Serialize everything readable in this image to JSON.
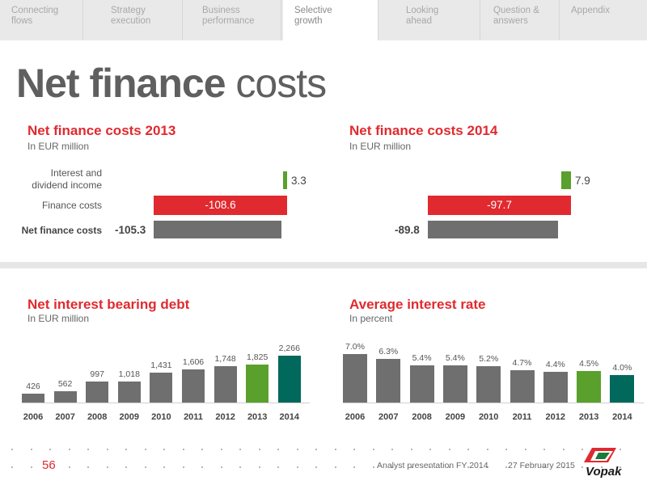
{
  "nav": {
    "tabs": [
      {
        "line1": "Connecting",
        "line2": "flows"
      },
      {
        "line1": "Strategy",
        "line2": "execution"
      },
      {
        "line1": "Business",
        "line2": "performance"
      },
      {
        "line1": "Selective",
        "line2": "growth"
      },
      {
        "line1": "Looking",
        "line2": "ahead"
      },
      {
        "line1": "Question &",
        "line2": "answers"
      },
      {
        "line1": "Appendix",
        "line2": ""
      }
    ],
    "active_index": 3
  },
  "page_title": {
    "bold": "Net finance",
    "regular": " costs"
  },
  "colors": {
    "red": "#e02a2f",
    "grey": "#6f6f6f",
    "green": "#5aa02c",
    "dark_green": "#00695c"
  },
  "finance_2013": {
    "title": "Net finance costs 2013",
    "subtitle": "In EUR million",
    "rows": [
      {
        "label_line1": "Interest and",
        "label_line2": "dividend income",
        "value": 3.3,
        "display": "3.3"
      },
      {
        "label_line1": "Finance costs",
        "label_line2": "",
        "value": -108.6,
        "display": "-108.6"
      },
      {
        "label_line1": "Net finance costs",
        "label_line2": "",
        "value": -105.3,
        "display": "-105.3"
      }
    ]
  },
  "finance_2014": {
    "title": "Net finance costs 2014",
    "subtitle": "In EUR million",
    "rows": [
      {
        "value": 7.9,
        "display": "7.9"
      },
      {
        "value": -97.7,
        "display": "-97.7"
      },
      {
        "value": -89.8,
        "display": "-89.8"
      }
    ]
  },
  "chart_data": [
    {
      "type": "bar",
      "title": "Net interest bearing debt",
      "subtitle": "In EUR million",
      "categories": [
        "2006",
        "2007",
        "2008",
        "2009",
        "2010",
        "2011",
        "2012",
        "2013",
        "2014"
      ],
      "values": [
        426,
        562,
        997,
        1018,
        1431,
        1606,
        1748,
        1825,
        2266
      ],
      "labels": [
        "426",
        "562",
        "997",
        "1,018",
        "1,431",
        "1,606",
        "1,748",
        "1,825",
        "2,266"
      ],
      "highlight": {
        "2013": "#5aa02c",
        "2014": "#00695c"
      }
    },
    {
      "type": "bar",
      "title": "Average interest rate",
      "subtitle": "In percent",
      "categories": [
        "2006",
        "2007",
        "2008",
        "2009",
        "2010",
        "2011",
        "2012",
        "2013",
        "2014"
      ],
      "values": [
        7.0,
        6.3,
        5.4,
        5.4,
        5.2,
        4.7,
        4.4,
        4.5,
        4.0
      ],
      "labels": [
        "7.0%",
        "6.3%",
        "5.4%",
        "5.4%",
        "5.2%",
        "4.7%",
        "4.4%",
        "4.5%",
        "4.0%"
      ],
      "highlight": {
        "2013": "#5aa02c",
        "2014": "#00695c"
      }
    }
  ],
  "footer": {
    "page_number": "56",
    "presentation": "Analyst presentation FY 2014",
    "date": "27 February 2015",
    "logo_text": "Vopak"
  }
}
